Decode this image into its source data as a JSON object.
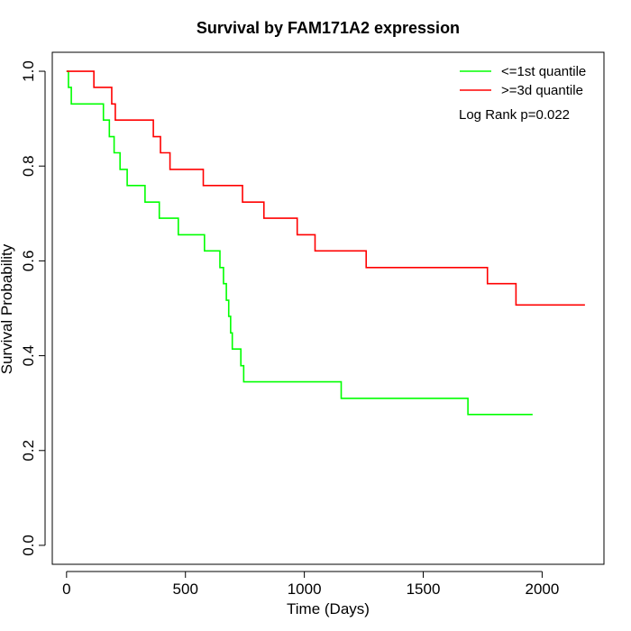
{
  "chart_data": {
    "type": "line",
    "step": true,
    "title": "Survival by FAM171A2 expression",
    "xlabel": "Time (Days)",
    "ylabel": "Survival Probability",
    "xlim": [
      -60,
      2260
    ],
    "ylim": [
      -0.04,
      1.04
    ],
    "xticks": [
      0,
      500,
      1000,
      1500,
      2000
    ],
    "yticks": [
      0.0,
      0.2,
      0.4,
      0.6,
      0.8,
      1.0
    ],
    "xtick_labels": [
      "0",
      "500",
      "1000",
      "1500",
      "2000"
    ],
    "ytick_labels": [
      "0.0",
      "0.2",
      "0.4",
      "0.6",
      "0.8",
      "1.0"
    ],
    "grid": false,
    "legend": {
      "position": "top-right"
    },
    "annotation": "Log Rank p=0.022",
    "series": [
      {
        "name": "<=1st quantile",
        "color": "#00ff00",
        "points": [
          [
            0,
            1.0
          ],
          [
            8,
            0.966
          ],
          [
            20,
            0.931
          ],
          [
            155,
            0.897
          ],
          [
            180,
            0.862
          ],
          [
            200,
            0.828
          ],
          [
            225,
            0.793
          ],
          [
            255,
            0.759
          ],
          [
            330,
            0.724
          ],
          [
            390,
            0.69
          ],
          [
            470,
            0.655
          ],
          [
            580,
            0.621
          ],
          [
            645,
            0.586
          ],
          [
            660,
            0.552
          ],
          [
            672,
            0.517
          ],
          [
            682,
            0.483
          ],
          [
            690,
            0.448
          ],
          [
            697,
            0.414
          ],
          [
            733,
            0.379
          ],
          [
            745,
            0.345
          ],
          [
            1155,
            0.31
          ],
          [
            1688,
            0.276
          ],
          [
            1960,
            0.276
          ]
        ]
      },
      {
        "name": ">=3d quantile",
        "color": "#ff0000",
        "points": [
          [
            0,
            1.0
          ],
          [
            115,
            0.966
          ],
          [
            190,
            0.931
          ],
          [
            205,
            0.897
          ],
          [
            365,
            0.862
          ],
          [
            395,
            0.828
          ],
          [
            435,
            0.793
          ],
          [
            575,
            0.759
          ],
          [
            740,
            0.724
          ],
          [
            830,
            0.69
          ],
          [
            970,
            0.655
          ],
          [
            1045,
            0.621
          ],
          [
            1260,
            0.586
          ],
          [
            1770,
            0.552
          ],
          [
            1890,
            0.507
          ],
          [
            2180,
            0.507
          ]
        ]
      }
    ]
  }
}
